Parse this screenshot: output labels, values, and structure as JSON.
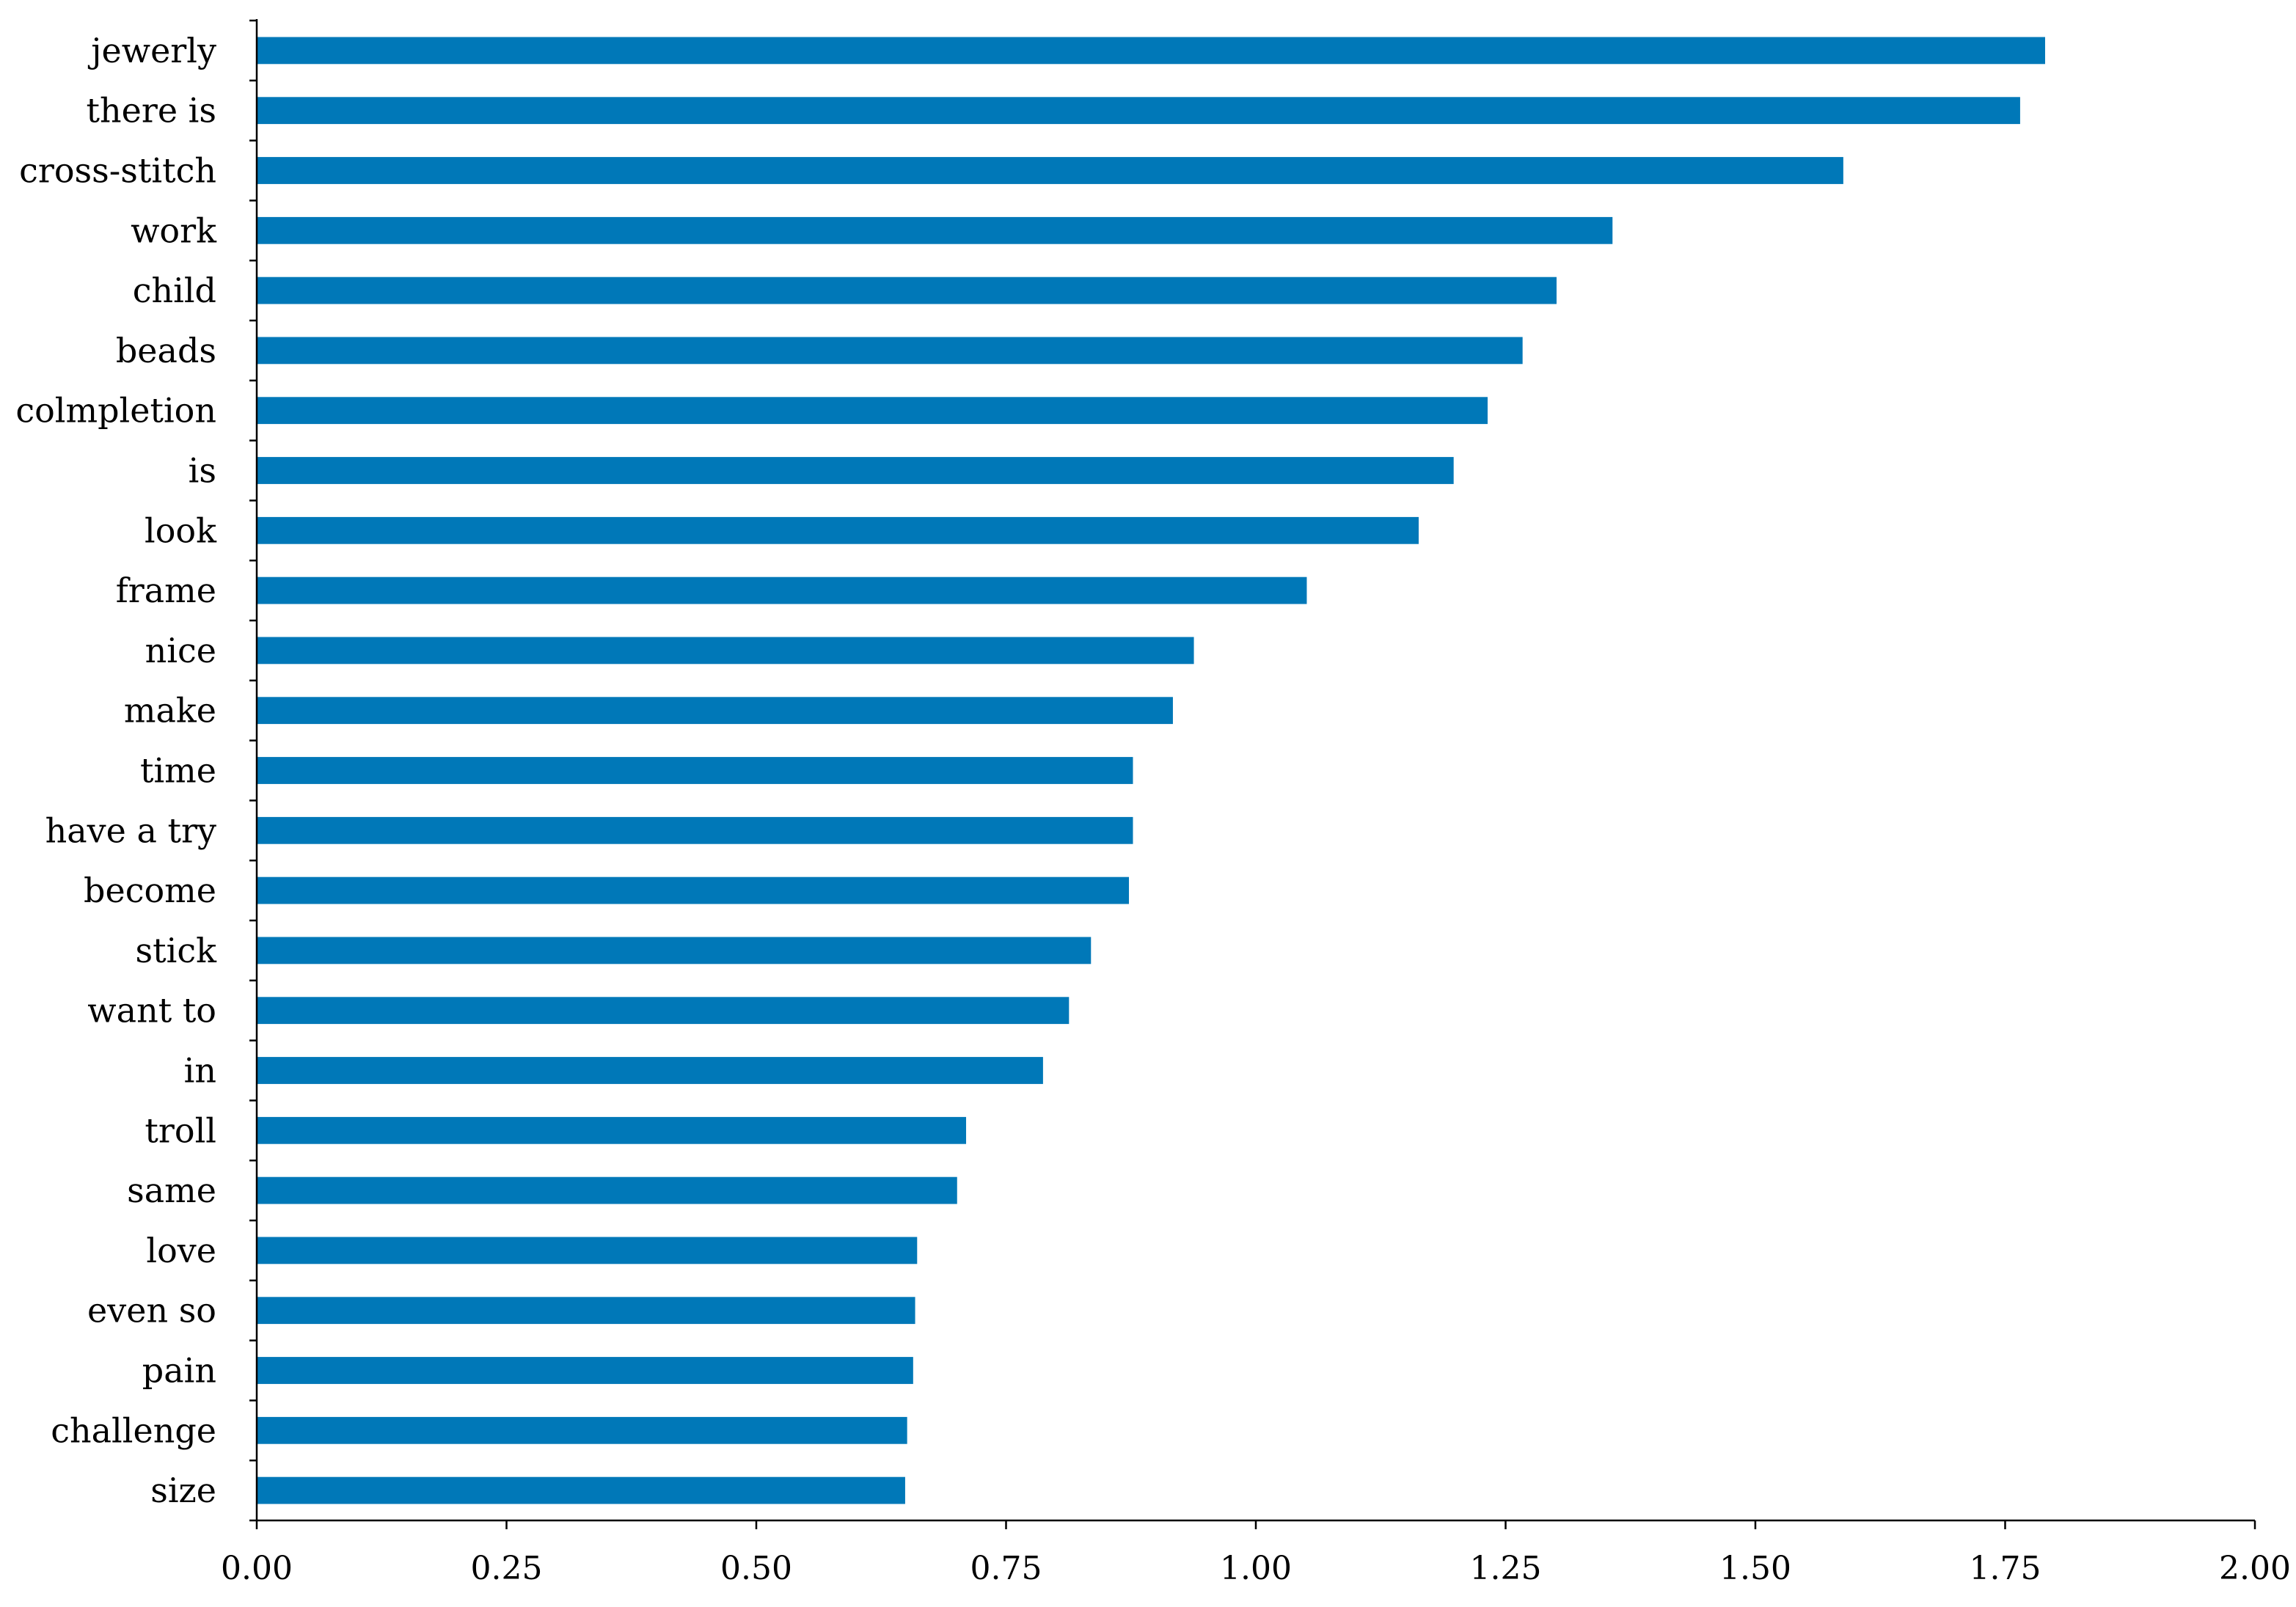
{
  "chart_data": {
    "type": "bar",
    "orientation": "horizontal",
    "title": "",
    "xlabel": "",
    "ylabel": "",
    "categories": [
      "jewerly",
      "there is",
      "cross-stitch",
      "work",
      "child",
      "beads",
      "colmpletion",
      "is",
      "look",
      "frame",
      "nice",
      "make",
      "time",
      "have a try",
      "become",
      "stick",
      "want to",
      "in",
      "troll",
      "same",
      "love",
      "even so",
      "pain",
      "challenge",
      "size"
    ],
    "values": [
      1.79,
      1.765,
      1.588,
      1.357,
      1.301,
      1.267,
      1.232,
      1.198,
      1.163,
      1.051,
      0.938,
      0.917,
      0.877,
      0.877,
      0.873,
      0.835,
      0.813,
      0.787,
      0.71,
      0.701,
      0.661,
      0.659,
      0.657,
      0.651,
      0.649
    ],
    "xlim": [
      0,
      2
    ],
    "x_ticks": [
      0,
      0.25,
      0.5,
      0.75,
      1.0,
      1.25,
      1.5,
      1.75,
      2.0
    ],
    "x_tick_labels": [
      "0.00",
      "0.25",
      "0.50",
      "0.75",
      "1.00",
      "1.25",
      "1.50",
      "1.75",
      "2.00"
    ],
    "bar_color": "#0078B8",
    "grid": false,
    "legend": "none"
  }
}
